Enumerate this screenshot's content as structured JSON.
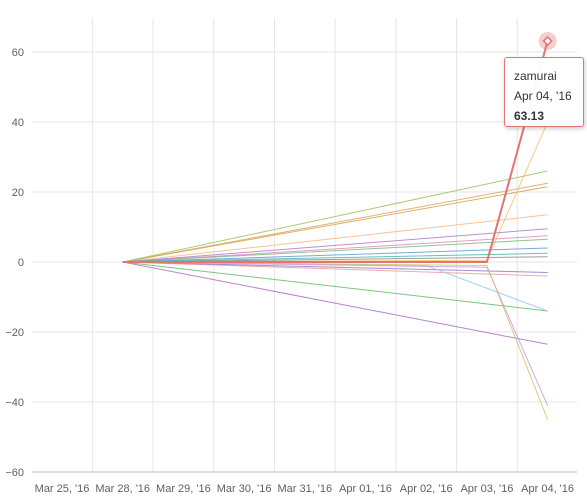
{
  "chart_data": {
    "type": "line",
    "x": [
      "Mar 25, '16",
      "Mar 28, '16",
      "Mar 29, '16",
      "Mar 30, '16",
      "Mar 31, '16",
      "Apr 01, '16",
      "Apr 02, '16",
      "Apr 03, '16",
      "Apr 04, '16"
    ],
    "ylim": [
      -60,
      70
    ],
    "yticks": [
      60,
      40,
      20,
      0,
      -20,
      -40,
      -60
    ],
    "grid": true,
    "legend": "none",
    "series": [
      {
        "color": "#e57373",
        "x": [
          "Mar 28, '16",
          "Apr 03, '16",
          "Apr 04, '16"
        ],
        "values": [
          0,
          0,
          63.13
        ]
      },
      {
        "color": "#e6a15c",
        "x": [
          "Mar 28, '16",
          "Apr 04, '16"
        ],
        "values": [
          0,
          22.5
        ]
      },
      {
        "color": "#c9a94e",
        "x": [
          "Mar 28, '16",
          "Apr 04, '16"
        ],
        "values": [
          0,
          21.5
        ]
      },
      {
        "color": "#9fbf5f",
        "x": [
          "Mar 28, '16",
          "Apr 04, '16"
        ],
        "values": [
          0,
          26
        ]
      },
      {
        "color": "#f5c16c",
        "x": [
          "Mar 28, '16",
          "Apr 03, '16",
          "Apr 04, '16"
        ],
        "values": [
          0,
          0.5,
          40
        ]
      },
      {
        "color": "#f4b98a",
        "x": [
          "Mar 28, '16",
          "Apr 04, '16"
        ],
        "values": [
          0,
          13.5
        ]
      },
      {
        "color": "#b07cc6",
        "x": [
          "Mar 28, '16",
          "Apr 04, '16"
        ],
        "values": [
          0,
          9.5
        ]
      },
      {
        "color": "#d98fb0",
        "x": [
          "Mar 28, '16",
          "Apr 04, '16"
        ],
        "values": [
          0,
          7.5
        ]
      },
      {
        "color": "#7fb77f",
        "x": [
          "Mar 28, '16",
          "Apr 04, '16"
        ],
        "values": [
          0,
          6.5
        ]
      },
      {
        "color": "#5b9bd5",
        "x": [
          "Mar 28, '16",
          "Apr 04, '16"
        ],
        "values": [
          0,
          4
        ]
      },
      {
        "color": "#4db6ac",
        "x": [
          "Mar 28, '16",
          "Apr 04, '16"
        ],
        "values": [
          0,
          2.5
        ]
      },
      {
        "color": "#8d8d8d",
        "x": [
          "Mar 28, '16",
          "Apr 04, '16"
        ],
        "values": [
          0,
          1.5
        ]
      },
      {
        "color": "#ef9a9a",
        "x": [
          "Mar 28, '16",
          "Apr 04, '16"
        ],
        "values": [
          0,
          -4
        ]
      },
      {
        "color": "#9575cd",
        "x": [
          "Mar 28, '16",
          "Apr 04, '16"
        ],
        "values": [
          0,
          -3
        ]
      },
      {
        "color": "#66bb6a",
        "x": [
          "Mar 28, '16",
          "Apr 04, '16"
        ],
        "values": [
          0,
          -14
        ]
      },
      {
        "color": "#ab6fbf",
        "x": [
          "Mar 28, '16",
          "Apr 04, '16"
        ],
        "values": [
          0,
          -23.5
        ]
      },
      {
        "color": "#90caf9",
        "x": [
          "Mar 28, '16",
          "Apr 02, '16",
          "Apr 04, '16"
        ],
        "values": [
          0,
          -1,
          -14
        ]
      },
      {
        "color": "#c3a0d8",
        "x": [
          "Mar 28, '16",
          "Apr 03, '16",
          "Apr 04, '16"
        ],
        "values": [
          0,
          -1.5,
          -41
        ]
      },
      {
        "color": "#d4c06a",
        "x": [
          "Mar 28, '16",
          "Apr 03, '16",
          "Apr 04, '16"
        ],
        "values": [
          0,
          -1,
          -45
        ]
      }
    ]
  },
  "tooltip": {
    "series": "zamurai",
    "date": "Apr 04, '16",
    "value": "63.13"
  }
}
